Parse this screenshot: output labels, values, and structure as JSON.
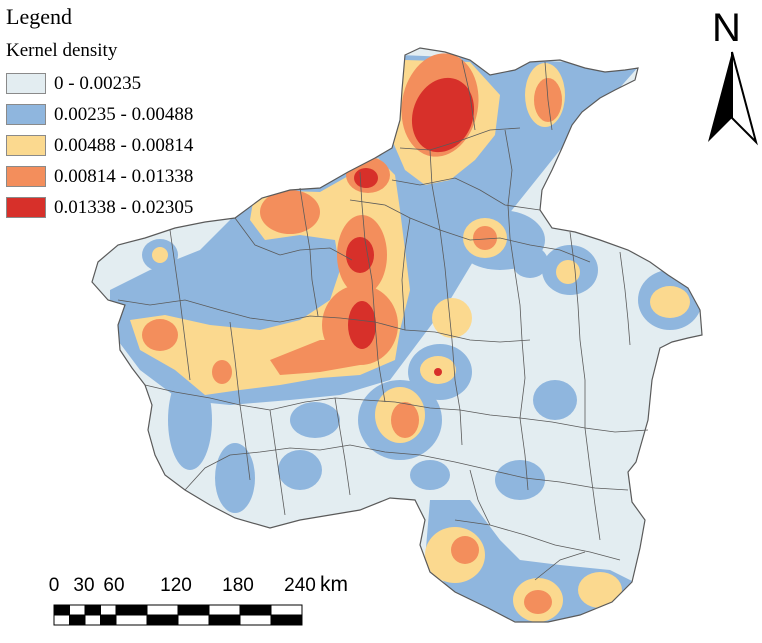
{
  "legend": {
    "title": "Legend",
    "subtitle": "Kernel density",
    "classes": [
      {
        "label": "0 - 0.00235",
        "color": "#e3edf1"
      },
      {
        "label": "0.00235 - 0.00488",
        "color": "#8fb6de"
      },
      {
        "label": "0.00488 - 0.00814",
        "color": "#fbd98f"
      },
      {
        "label": "0.00814 - 0.01338",
        "color": "#f38e5c"
      },
      {
        "label": "0.01338 - 0.02305",
        "color": "#d7302a"
      }
    ]
  },
  "north_arrow": {
    "letter": "N",
    "icon": "north-arrow-icon"
  },
  "scale_bar": {
    "ticks": [
      "0",
      "30",
      "60",
      "120",
      "180",
      "240"
    ],
    "unit": "km"
  },
  "colors": {
    "boundary": "#5a5a5a",
    "background": "#ffffff"
  }
}
